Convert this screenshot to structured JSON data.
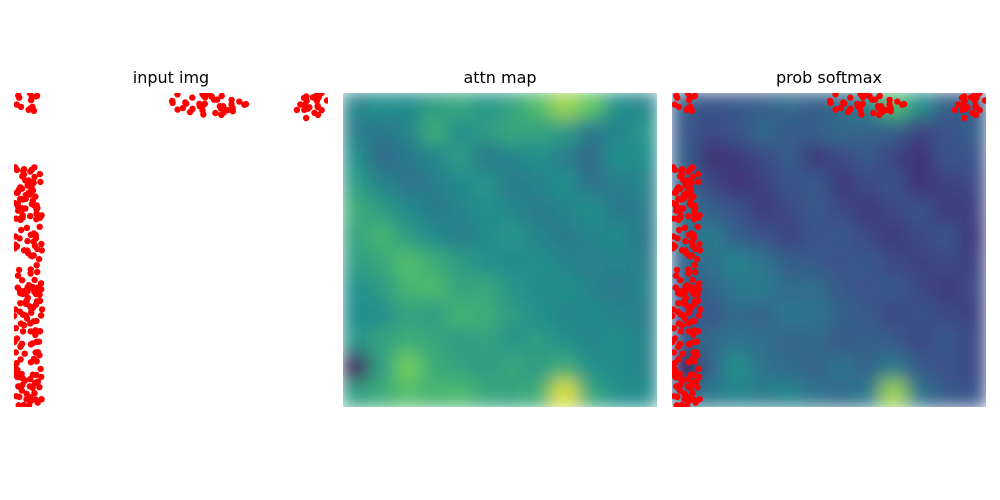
{
  "figure": {
    "panels": [
      {
        "id": "input",
        "title": "input img"
      },
      {
        "id": "attn",
        "title": "attn map"
      },
      {
        "id": "prob",
        "title": "prob softmax"
      }
    ]
  },
  "colors": {
    "points": "#ff0000",
    "background": "#ffffff",
    "colormap": "viridis"
  },
  "chart_data": [
    {
      "type": "scatter",
      "title": "input img",
      "axes_visible": false,
      "xlim": [
        0,
        1
      ],
      "ylim": [
        0,
        1
      ],
      "point_color": "#ff0000",
      "clusters": [
        {
          "x_range": [
            0.0,
            0.08
          ],
          "y_range": [
            0.93,
            1.0
          ],
          "n": 14
        },
        {
          "x_range": [
            0.5,
            0.74
          ],
          "y_range": [
            0.93,
            1.0
          ],
          "n": 40
        },
        {
          "x_range": [
            0.9,
            1.0
          ],
          "y_range": [
            0.92,
            1.0
          ],
          "n": 22
        },
        {
          "x_range": [
            0.0,
            0.09
          ],
          "y_range": [
            0.0,
            0.77
          ],
          "n": 200
        }
      ]
    },
    {
      "type": "heatmap",
      "title": "attn map",
      "axes_visible": false,
      "colormap": "viridis",
      "grid": [
        12,
        12
      ],
      "values": [
        [
          0.45,
          0.5,
          0.48,
          0.55,
          0.6,
          0.52,
          0.58,
          0.7,
          0.85,
          0.75,
          0.5,
          0.45
        ],
        [
          0.42,
          0.4,
          0.45,
          0.62,
          0.5,
          0.55,
          0.6,
          0.58,
          0.55,
          0.4,
          0.45,
          0.52
        ],
        [
          0.5,
          0.35,
          0.4,
          0.45,
          0.55,
          0.4,
          0.45,
          0.5,
          0.42,
          0.35,
          0.5,
          0.48
        ],
        [
          0.55,
          0.45,
          0.38,
          0.42,
          0.48,
          0.52,
          0.4,
          0.45,
          0.5,
          0.38,
          0.42,
          0.45
        ],
        [
          0.62,
          0.55,
          0.48,
          0.4,
          0.45,
          0.5,
          0.46,
          0.4,
          0.45,
          0.5,
          0.4,
          0.42
        ],
        [
          0.58,
          0.66,
          0.55,
          0.48,
          0.42,
          0.48,
          0.52,
          0.45,
          0.4,
          0.45,
          0.48,
          0.4
        ],
        [
          0.55,
          0.6,
          0.7,
          0.62,
          0.55,
          0.5,
          0.48,
          0.5,
          0.45,
          0.42,
          0.45,
          0.42
        ],
        [
          0.5,
          0.55,
          0.65,
          0.68,
          0.58,
          0.6,
          0.52,
          0.48,
          0.5,
          0.45,
          0.4,
          0.45
        ],
        [
          0.48,
          0.5,
          0.58,
          0.55,
          0.65,
          0.62,
          0.55,
          0.5,
          0.45,
          0.48,
          0.45,
          0.42
        ],
        [
          0.52,
          0.58,
          0.62,
          0.6,
          0.55,
          0.58,
          0.52,
          0.55,
          0.5,
          0.45,
          0.5,
          0.45
        ],
        [
          0.05,
          0.55,
          0.78,
          0.62,
          0.58,
          0.55,
          0.6,
          0.55,
          0.62,
          0.5,
          0.48,
          0.45
        ],
        [
          0.55,
          0.62,
          0.7,
          0.65,
          0.68,
          0.6,
          0.58,
          0.62,
          0.95,
          0.6,
          0.5,
          0.48
        ]
      ]
    },
    {
      "type": "heatmap",
      "title": "prob softmax",
      "axes_visible": false,
      "colormap": "viridis",
      "grid": [
        12,
        12
      ],
      "values": [
        [
          0.3,
          0.25,
          0.28,
          0.3,
          0.35,
          0.3,
          0.35,
          0.45,
          0.7,
          0.5,
          0.3,
          0.28
        ],
        [
          0.28,
          0.22,
          0.25,
          0.35,
          0.28,
          0.3,
          0.35,
          0.32,
          0.3,
          0.2,
          0.25,
          0.3
        ],
        [
          0.3,
          0.15,
          0.18,
          0.22,
          0.3,
          0.18,
          0.22,
          0.28,
          0.2,
          0.15,
          0.25,
          0.25
        ],
        [
          0.32,
          0.22,
          0.15,
          0.2,
          0.25,
          0.28,
          0.18,
          0.22,
          0.25,
          0.15,
          0.2,
          0.22
        ],
        [
          0.4,
          0.3,
          0.25,
          0.18,
          0.22,
          0.28,
          0.22,
          0.18,
          0.22,
          0.25,
          0.18,
          0.2
        ],
        [
          0.35,
          0.42,
          0.3,
          0.25,
          0.2,
          0.25,
          0.28,
          0.22,
          0.18,
          0.22,
          0.25,
          0.18
        ],
        [
          0.32,
          0.38,
          0.45,
          0.38,
          0.3,
          0.28,
          0.25,
          0.28,
          0.22,
          0.2,
          0.22,
          0.2
        ],
        [
          0.28,
          0.32,
          0.4,
          0.42,
          0.35,
          0.36,
          0.28,
          0.25,
          0.28,
          0.22,
          0.18,
          0.22
        ],
        [
          0.25,
          0.28,
          0.35,
          0.32,
          0.4,
          0.38,
          0.32,
          0.28,
          0.22,
          0.25,
          0.22,
          0.2
        ],
        [
          0.28,
          0.35,
          0.38,
          0.36,
          0.32,
          0.35,
          0.28,
          0.32,
          0.28,
          0.22,
          0.28,
          0.22
        ],
        [
          0.02,
          0.32,
          0.5,
          0.38,
          0.35,
          0.32,
          0.38,
          0.32,
          0.4,
          0.28,
          0.25,
          0.22
        ],
        [
          0.32,
          0.4,
          0.45,
          0.42,
          0.45,
          0.38,
          0.35,
          0.4,
          0.85,
          0.38,
          0.28,
          0.25
        ]
      ],
      "overlay_points": true
    }
  ]
}
